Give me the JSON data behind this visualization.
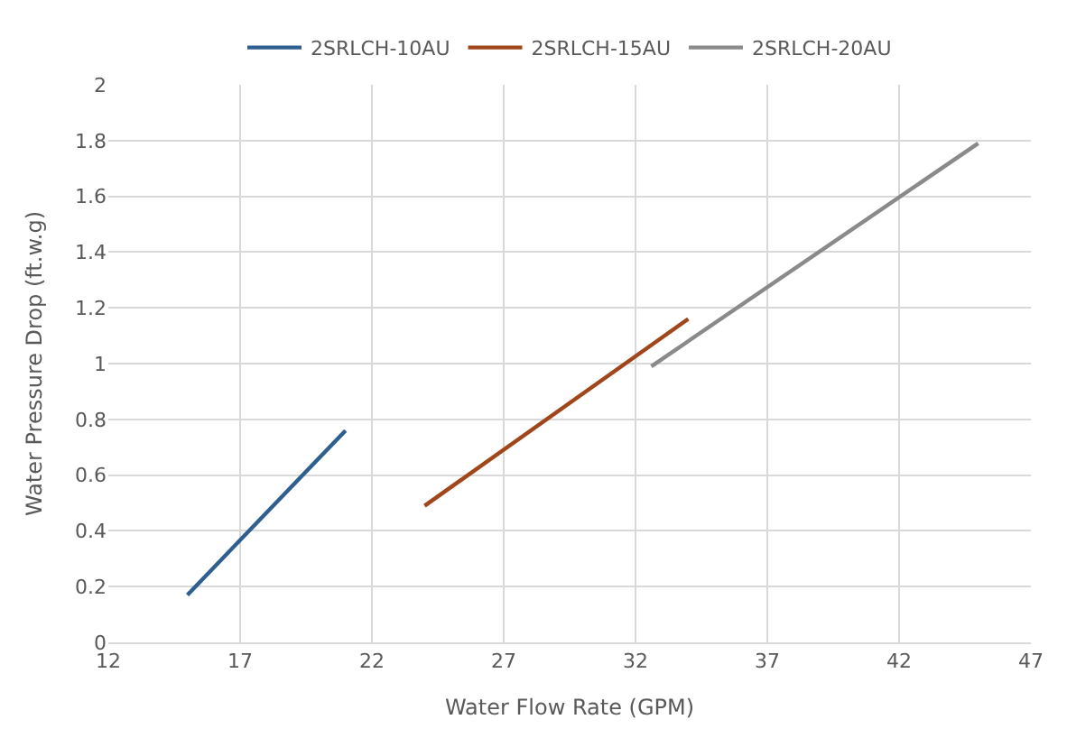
{
  "chart_data": {
    "type": "line",
    "xlabel": "Water Flow Rate (GPM)",
    "ylabel": "Water Pressure Drop (ft.w.g)",
    "series": [
      {
        "name": "2SRLCH-10AU",
        "color": "#2e5f8f",
        "x": [
          15,
          21
        ],
        "values": [
          0.17,
          0.76
        ]
      },
      {
        "name": "2SRLCH-15AU",
        "color": "#a0461a",
        "x": [
          24,
          34
        ],
        "values": [
          0.49,
          1.16
        ]
      },
      {
        "name": "2SRLCH-20AU",
        "color": "#8a8a8a",
        "x": [
          32.6,
          45
        ],
        "values": [
          0.99,
          1.79
        ]
      }
    ],
    "xlim": [
      12,
      47
    ],
    "xticks": [
      12,
      17,
      22,
      27,
      32,
      37,
      42,
      47
    ],
    "ylim": [
      0,
      2
    ],
    "yticks": [
      0,
      0.2,
      0.4,
      0.6,
      0.8,
      1,
      1.2,
      1.4,
      1.6,
      1.8,
      2
    ],
    "grid": true,
    "legend": "top",
    "marker": "none",
    "line_style": "solid"
  }
}
